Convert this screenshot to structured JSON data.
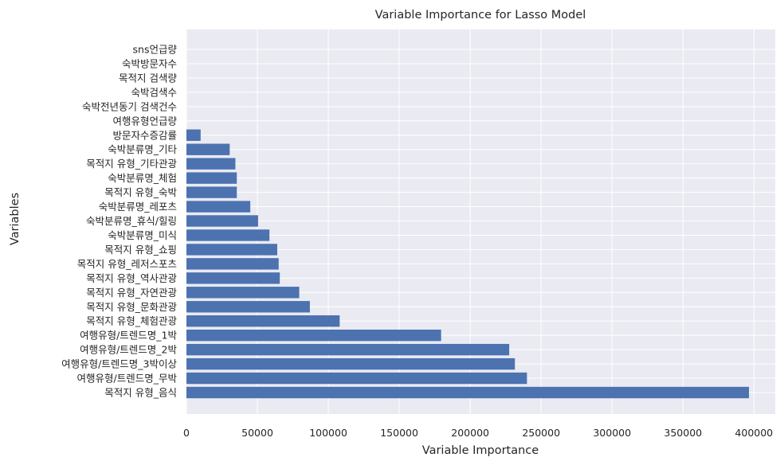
{
  "chart_data": {
    "type": "bar",
    "orientation": "horizontal",
    "title": "Variable Importance for Lasso Model",
    "xlabel": "Variable Importance",
    "ylabel": "Variables",
    "xlim": [
      0,
      415000
    ],
    "xticks": [
      0,
      50000,
      100000,
      150000,
      200000,
      250000,
      300000,
      350000,
      400000
    ],
    "grid": true,
    "legend": "none",
    "colors": {
      "bar": "#4c72b0",
      "plot_background": "#eaeaf2",
      "grid": "#ffffff"
    },
    "categories": [
      "목적지 유형_음식",
      "여행유형/트렌드명_무박",
      "여행유형/트렌드명_3박이상",
      "여행유형/트렌드명_2박",
      "여행유형/트렌드명_1박",
      "목적지 유형_체험관광",
      "목적지 유형_문화관광",
      "목적지 유형_자연관광",
      "목적지 유형_역사관광",
      "목적지 유형_레저스포츠",
      "목적지 유형_쇼핑",
      "숙박분류명_미식",
      "숙박분류명_휴식/힐링",
      "숙박분류명_레포츠",
      "목적지 유형_숙박",
      "숙박분류명_체험",
      "목적지 유형_기타관광",
      "숙박분류명_기타",
      "방문자수증감률",
      "여행유형언급량",
      "숙박전년동기 검색건수",
      "숙박검색수",
      "목적지 검색량",
      "숙박방문자수",
      "sns언급량"
    ],
    "values": [
      396500,
      240000,
      231500,
      227500,
      179500,
      108000,
      87000,
      79500,
      65800,
      65000,
      64000,
      58500,
      50500,
      45000,
      35500,
      35500,
      34500,
      30500,
      10000,
      0,
      0,
      0,
      0,
      0,
      0
    ]
  }
}
